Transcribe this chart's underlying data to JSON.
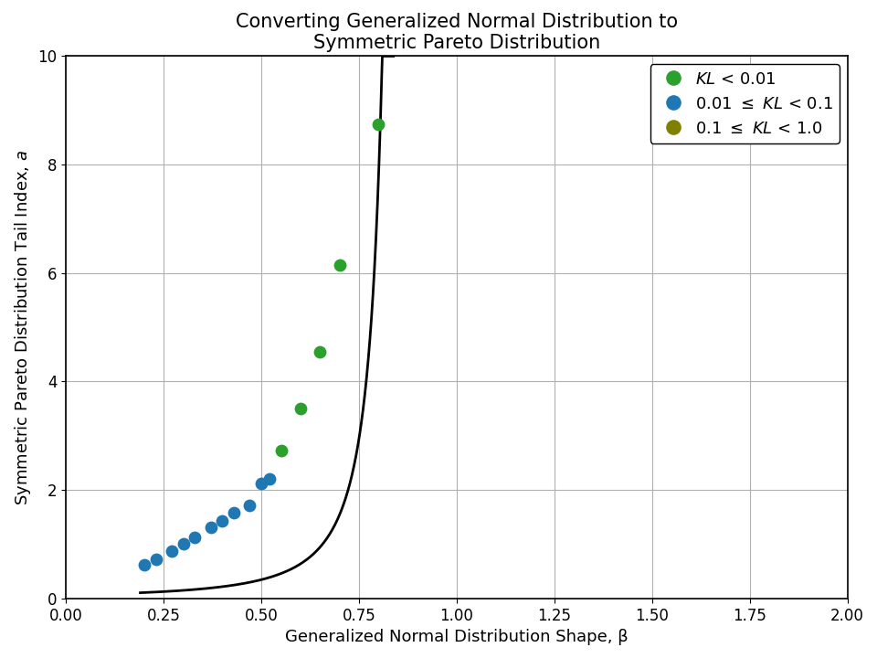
{
  "title": "Converting Generalized Normal Distribution to\nSymmetric Pareto Distribution",
  "xlabel": "Generalized Normal Distribution Shape, β",
  "ylabel": "Symmetric Pareto Distribution Tail Index, α",
  "ylabel_italic_a": true,
  "xlim": [
    0.0,
    2.0
  ],
  "ylim": [
    0,
    10
  ],
  "xticks": [
    0.0,
    0.25,
    0.5,
    0.75,
    1.0,
    1.25,
    1.5,
    1.75,
    2.0
  ],
  "yticks": [
    0,
    2,
    4,
    6,
    8,
    10
  ],
  "scatter_points": [
    {
      "beta": 0.2,
      "alpha": 0.62,
      "kl": 0.05
    },
    {
      "beta": 0.23,
      "alpha": 0.72,
      "kl": 0.05
    },
    {
      "beta": 0.27,
      "alpha": 0.88,
      "kl": 0.05
    },
    {
      "beta": 0.3,
      "alpha": 1.0,
      "kl": 0.05
    },
    {
      "beta": 0.33,
      "alpha": 1.12,
      "kl": 0.05
    },
    {
      "beta": 0.37,
      "alpha": 1.32,
      "kl": 0.05
    },
    {
      "beta": 0.4,
      "alpha": 1.43,
      "kl": 0.05
    },
    {
      "beta": 0.43,
      "alpha": 1.58,
      "kl": 0.05
    },
    {
      "beta": 0.47,
      "alpha": 1.72,
      "kl": 0.05
    },
    {
      "beta": 0.5,
      "alpha": 2.12,
      "kl": 0.05
    },
    {
      "beta": 0.52,
      "alpha": 2.2,
      "kl": 0.05
    },
    {
      "beta": 0.55,
      "alpha": 2.73,
      "kl": 0.005
    },
    {
      "beta": 0.6,
      "alpha": 3.5,
      "kl": 0.005
    },
    {
      "beta": 0.65,
      "alpha": 4.55,
      "kl": 0.005
    },
    {
      "beta": 0.7,
      "alpha": 6.15,
      "kl": 0.005
    },
    {
      "beta": 0.8,
      "alpha": 8.75,
      "kl": 0.005
    }
  ],
  "color_green": "#2ca02c",
  "color_blue": "#1f77b4",
  "color_olive": "#808000",
  "legend_entries": [
    {
      "label": "KL < 0.01",
      "color": "#2ca02c"
    },
    {
      "label": "0.01 ≤ KL < 0.1",
      "color": "#1f77b4"
    },
    {
      "label": "0.1 ≤ KL < 1.0",
      "color": "#808000"
    }
  ],
  "marker_size": 80,
  "line_color": "black",
  "line_width": 2.0,
  "background_color": "#ffffff",
  "grid_color": "#b0b0b0"
}
